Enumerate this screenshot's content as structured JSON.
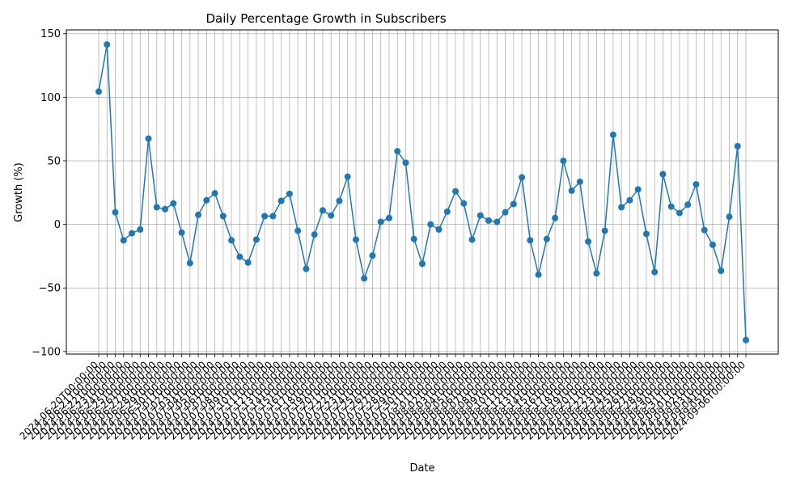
{
  "chart_data": {
    "type": "line",
    "title": "Daily Percentage Growth in Subscribers",
    "xlabel": "Date",
    "ylabel": "Growth (%)",
    "ylim": [
      -102,
      153
    ],
    "yticks": [
      -100,
      -50,
      0,
      50,
      100,
      150
    ],
    "ytick_labels": [
      "−100",
      "−50",
      "0",
      "50",
      "100",
      "150"
    ],
    "grid": true,
    "color": "#1f77b4",
    "marker": "circle",
    "series": [
      {
        "x": [
          "2024-06-20",
          "2024-06-21",
          "2024-06-22",
          "2024-06-23",
          "2024-06-24",
          "2024-06-25",
          "2024-06-26",
          "2024-06-27",
          "2024-06-28",
          "2024-06-29",
          "2024-06-30",
          "2024-07-01",
          "2024-07-02",
          "2024-07-03",
          "2024-07-04",
          "2024-07-05",
          "2024-07-06",
          "2024-07-07",
          "2024-07-08",
          "2024-07-09",
          "2024-07-10",
          "2024-07-11",
          "2024-07-12",
          "2024-07-13",
          "2024-07-14",
          "2024-07-15",
          "2024-07-16",
          "2024-07-17",
          "2024-07-18",
          "2024-07-19",
          "2024-07-20",
          "2024-07-21",
          "2024-07-22",
          "2024-07-23",
          "2024-07-24",
          "2024-07-25",
          "2024-07-26",
          "2024-07-27",
          "2024-07-28",
          "2024-07-29",
          "2024-07-30",
          "2024-07-31",
          "2024-08-01",
          "2024-08-02",
          "2024-08-03",
          "2024-08-04",
          "2024-08-05",
          "2024-08-06",
          "2024-08-07",
          "2024-08-08",
          "2024-08-09",
          "2024-08-10",
          "2024-08-11",
          "2024-08-12",
          "2024-08-13",
          "2024-08-14",
          "2024-08-15",
          "2024-08-16",
          "2024-08-17",
          "2024-08-18",
          "2024-08-19",
          "2024-08-20",
          "2024-08-21",
          "2024-08-22",
          "2024-08-23",
          "2024-08-24",
          "2024-08-25",
          "2024-08-26",
          "2024-08-27",
          "2024-08-28",
          "2024-08-29",
          "2024-08-30",
          "2024-08-31",
          "2024-09-01",
          "2024-09-02",
          "2024-09-03",
          "2024-09-04",
          "2024-09-05",
          "2024-09-06"
        ],
        "values": [
          104.5,
          141.5,
          9.5,
          -12.5,
          -7,
          -4,
          67.5,
          13.5,
          12,
          16.5,
          -6.5,
          -30.5,
          7.5,
          19,
          24.5,
          6.5,
          -12.5,
          -25.5,
          -30,
          -12,
          6.5,
          6.5,
          18.5,
          24,
          -5,
          -35,
          -8,
          11,
          7,
          18.5,
          37.5,
          -12,
          -42.5,
          -24.5,
          2,
          5,
          57.5,
          48.5,
          -11.5,
          -31,
          0,
          -4,
          10,
          26,
          16.5,
          -12,
          7,
          3,
          2,
          9.5,
          16,
          37,
          -12.5,
          -39.5,
          -11.5,
          5,
          50,
          26.5,
          33.5,
          -13.5,
          -38.5,
          -5,
          70.5,
          13.5,
          19,
          27.5,
          -7.5,
          -37.5,
          39.5,
          14,
          9,
          15.5,
          31.5,
          -4.5,
          -16,
          -36.5,
          6,
          61.5,
          -91
        ]
      }
    ],
    "xtick_labels": [
      "2024-06-20T00:00:00",
      "2024-06-21T00:00:00",
      "2024-06-22T00:00:00",
      "2024-06-23T00:00:00",
      "2024-06-24T00:00:00",
      "2024-06-25T00:00:00",
      "2024-06-26T00:00:00",
      "2024-06-27T00:00:00",
      "2024-06-28T00:00:00",
      "2024-06-29T00:00:00",
      "2024-06-30T00:00:00",
      "2024-07-01T00:00:00",
      "2024-07-02T00:00:00",
      "2024-07-03T00:00:00",
      "2024-07-04T00:00:00",
      "2024-07-05T00:00:00",
      "2024-07-06T00:00:00",
      "2024-07-07T00:00:00",
      "2024-07-08T00:00:00",
      "2024-07-09T00:00:00",
      "2024-07-10T00:00:00",
      "2024-07-11T00:00:00",
      "2024-07-12T00:00:00",
      "2024-07-13T00:00:00",
      "2024-07-14T00:00:00",
      "2024-07-15T00:00:00",
      "2024-07-16T00:00:00",
      "2024-07-17T00:00:00",
      "2024-07-18T00:00:00",
      "2024-07-19T00:00:00",
      "2024-07-20T00:00:00",
      "2024-07-21T00:00:00",
      "2024-07-22T00:00:00",
      "2024-07-23T00:00:00",
      "2024-07-24T00:00:00",
      "2024-07-25T00:00:00",
      "2024-07-26T00:00:00",
      "2024-07-27T00:00:00",
      "2024-07-28T00:00:00",
      "2024-07-29T00:00:00",
      "2024-07-30T00:00:00",
      "2024-07-31T00:00:00",
      "2024-08-01T00:00:00",
      "2024-08-02T00:00:00",
      "2024-08-03T00:00:00",
      "2024-08-04T00:00:00",
      "2024-08-05T00:00:00",
      "2024-08-06T00:00:00",
      "2024-08-07T00:00:00",
      "2024-08-08T00:00:00",
      "2024-08-09T00:00:00",
      "2024-08-10T00:00:00",
      "2024-08-11T00:00:00",
      "2024-08-12T00:00:00",
      "2024-08-13T00:00:00",
      "2024-08-14T00:00:00",
      "2024-08-15T00:00:00",
      "2024-08-16T00:00:00",
      "2024-08-17T00:00:00",
      "2024-08-18T00:00:00",
      "2024-08-19T00:00:00",
      "2024-08-20T00:00:00",
      "2024-08-21T00:00:00",
      "2024-08-22T00:00:00",
      "2024-08-23T00:00:00",
      "2024-08-24T00:00:00",
      "2024-08-25T00:00:00",
      "2024-08-26T00:00:00",
      "2024-08-27T00:00:00",
      "2024-08-28T00:00:00",
      "2024-08-29T00:00:00",
      "2024-08-30T00:00:00",
      "2024-08-31T00:00:00",
      "2024-09-01T00:00:00",
      "2024-09-02T00:00:00",
      "2024-09-03T00:00:00",
      "2024-09-04T00:00:00",
      "2024-09-05T00:00:00",
      "2024-09-06T00:00:00"
    ]
  }
}
